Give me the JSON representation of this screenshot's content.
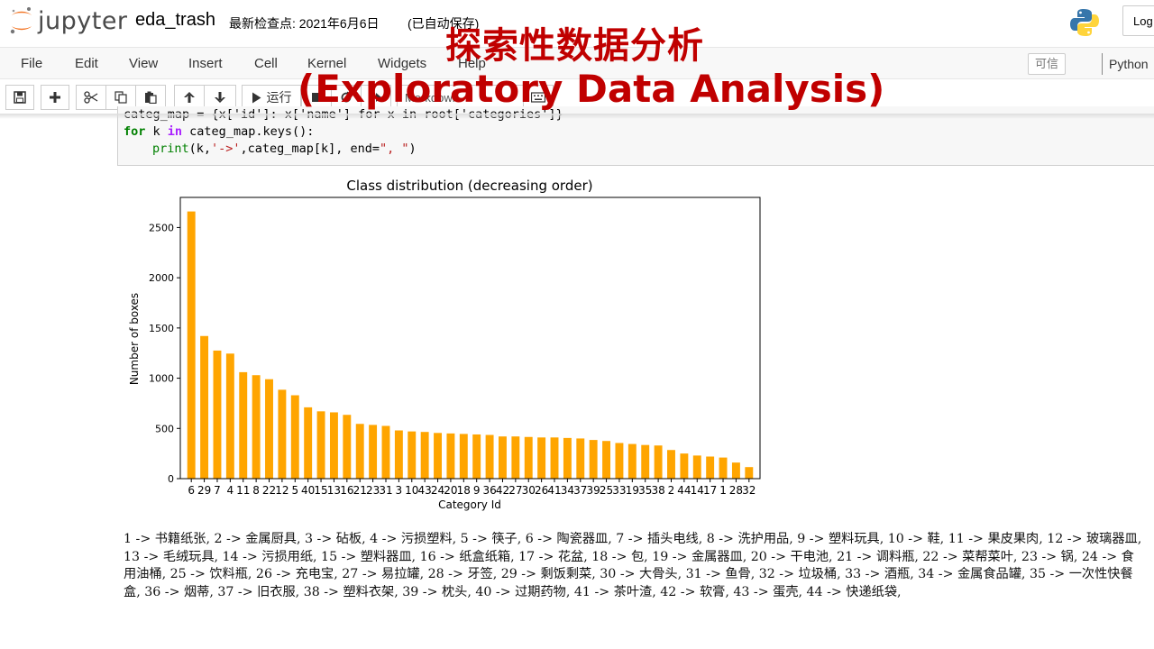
{
  "header": {
    "logo_text": "jupyter",
    "notebook_name": "eda_trash",
    "checkpoint": "最新检查点: 2021年6月6日",
    "autosave": "(已自动保存)",
    "logout_label": "Log"
  },
  "menubar": {
    "items": [
      "File",
      "Edit",
      "View",
      "Insert",
      "Cell",
      "Kernel",
      "Widgets",
      "Help"
    ],
    "trusted_label": "可信",
    "kernel_label": "Python"
  },
  "toolbar": {
    "run_label": "运行",
    "cell_type": "Markdown"
  },
  "code": {
    "line1": "categ_map = {x['id']: x['name'] for x in root['categories']}",
    "line2_kw": "for",
    "line2_a": " k ",
    "line2_in": "in",
    "line2_b": " categ_map.keys():",
    "line3_print": "print",
    "line3_a": "(k,",
    "line3_s1": "'->'",
    "line3_b": ",categ_map[k], end=",
    "line3_s2": "\", \"",
    "line3_c": ")"
  },
  "overlay": {
    "title": "探索性数据分析",
    "subtitle": "(Exploratory Data Analysis)"
  },
  "chart_data": {
    "type": "bar",
    "title": "Class distribution (decreasing order)",
    "xlabel": "Category Id",
    "ylabel": "Number of boxes",
    "categories": [
      "6",
      "29",
      "7",
      "4",
      "11",
      "8",
      "22",
      "12",
      "5",
      "40",
      "15",
      "13",
      "16",
      "21",
      "23",
      "31",
      "3",
      "10",
      "43",
      "24",
      "20",
      "18",
      "9",
      "36",
      "42",
      "27",
      "30",
      "26",
      "41",
      "34",
      "37",
      "39",
      "25",
      "33",
      "19",
      "35",
      "38",
      "2",
      "44",
      "14",
      "17",
      "1",
      "28",
      "32"
    ],
    "values": [
      2660,
      1420,
      1275,
      1245,
      1060,
      1030,
      990,
      885,
      830,
      710,
      670,
      660,
      635,
      545,
      535,
      525,
      480,
      470,
      465,
      455,
      450,
      445,
      440,
      435,
      420,
      420,
      415,
      410,
      410,
      405,
      400,
      385,
      375,
      355,
      345,
      335,
      330,
      285,
      250,
      230,
      220,
      210,
      160,
      115
    ],
    "ylim": [
      0,
      2800
    ],
    "yticks": [
      0,
      500,
      1000,
      1500,
      2000,
      2500
    ],
    "bar_color": "#ffa500",
    "grid": false
  },
  "mapping_text": "1 -> 书籍纸张, 2 -> 金属厨具, 3 -> 砧板, 4 -> 污损塑料, 5 -> 筷子, 6 -> 陶瓷器皿, 7 -> 插头电线, 8 -> 洗护用品, 9 -> 塑料玩具, 10 -> 鞋, 11 -> 果皮果肉, 12 -> 玻璃器皿, 13 -> 毛绒玩具, 14 -> 污损用纸, 15 -> 塑料器皿, 16 -> 纸盒纸箱, 17 -> 花盆, 18 -> 包, 19 -> 金属器皿, 20 -> 干电池, 21 -> 调料瓶, 22 -> 菜帮菜叶, 23 -> 锅, 24 -> 食用油桶, 25 -> 饮料瓶, 26 -> 充电宝, 27 -> 易拉罐, 28 -> 牙签, 29 -> 剩饭剩菜, 30 -> 大骨头, 31 -> 鱼骨, 32 -> 垃圾桶, 33 -> 酒瓶, 34 -> 金属食品罐, 35 -> 一次性快餐盒, 36 -> 烟蒂, 37 -> 旧衣服, 38 -> 塑料衣架, 39 -> 枕头, 40 -> 过期药物, 41 -> 茶叶渣, 42 -> 软膏, 43 -> 蛋壳, 44 -> 快递纸袋,",
  "colors": {
    "overlay_red": "#c00000",
    "bar_orange": "#ffa500",
    "jupyter_orange": "#f37626"
  }
}
